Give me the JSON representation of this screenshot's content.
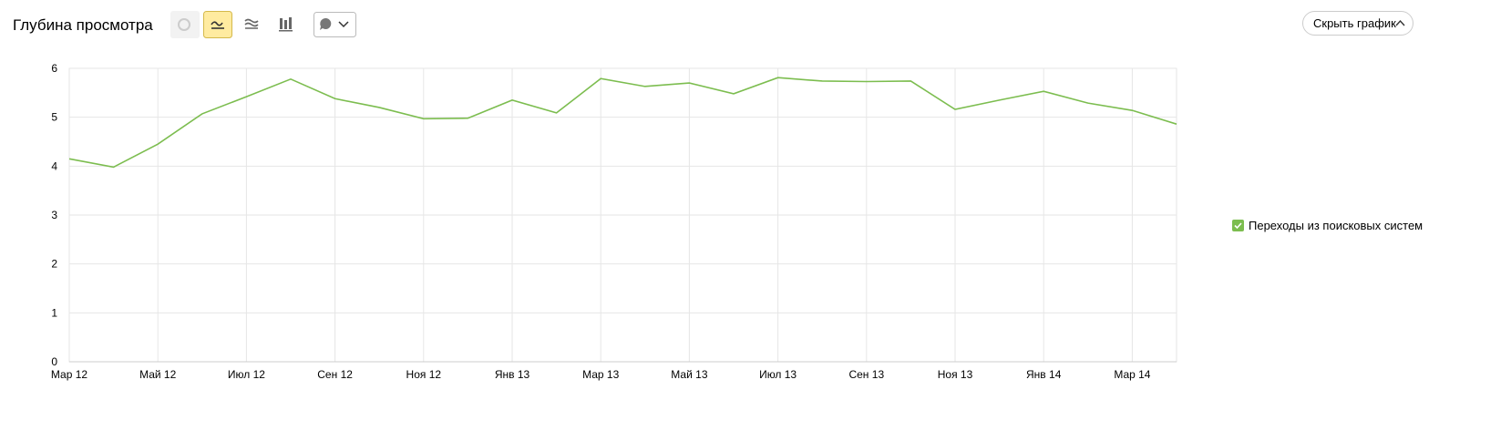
{
  "header": {
    "title": "Глубина просмотра",
    "hide_button": "Скрыть график"
  },
  "chart_data": {
    "type": "line",
    "categories": [
      "Мар 12",
      null,
      "Май 12",
      null,
      "Июл 12",
      null,
      "Сен 12",
      null,
      "Ноя 12",
      null,
      "Янв 13",
      null,
      "Мар 13",
      null,
      "Май 13",
      null,
      "Июл 13",
      null,
      "Сен 13",
      null,
      "Ноя 13",
      null,
      "Янв 14",
      null,
      "Мар 14",
      null
    ],
    "series": [
      {
        "name": "Переходы из поисковых систем",
        "color": "#7cbd4f",
        "values": [
          4.15,
          3.98,
          4.45,
          5.07,
          5.42,
          5.78,
          5.38,
          5.2,
          4.97,
          4.98,
          5.35,
          5.09,
          5.79,
          5.63,
          5.7,
          5.48,
          5.81,
          5.74,
          5.73,
          5.74,
          5.16,
          5.35,
          5.53,
          5.29,
          5.14,
          4.86
        ]
      }
    ],
    "ylim": [
      0,
      6
    ],
    "yticks": [
      0,
      1,
      2,
      3,
      4,
      5,
      6
    ],
    "grid": true,
    "legend": "right"
  }
}
